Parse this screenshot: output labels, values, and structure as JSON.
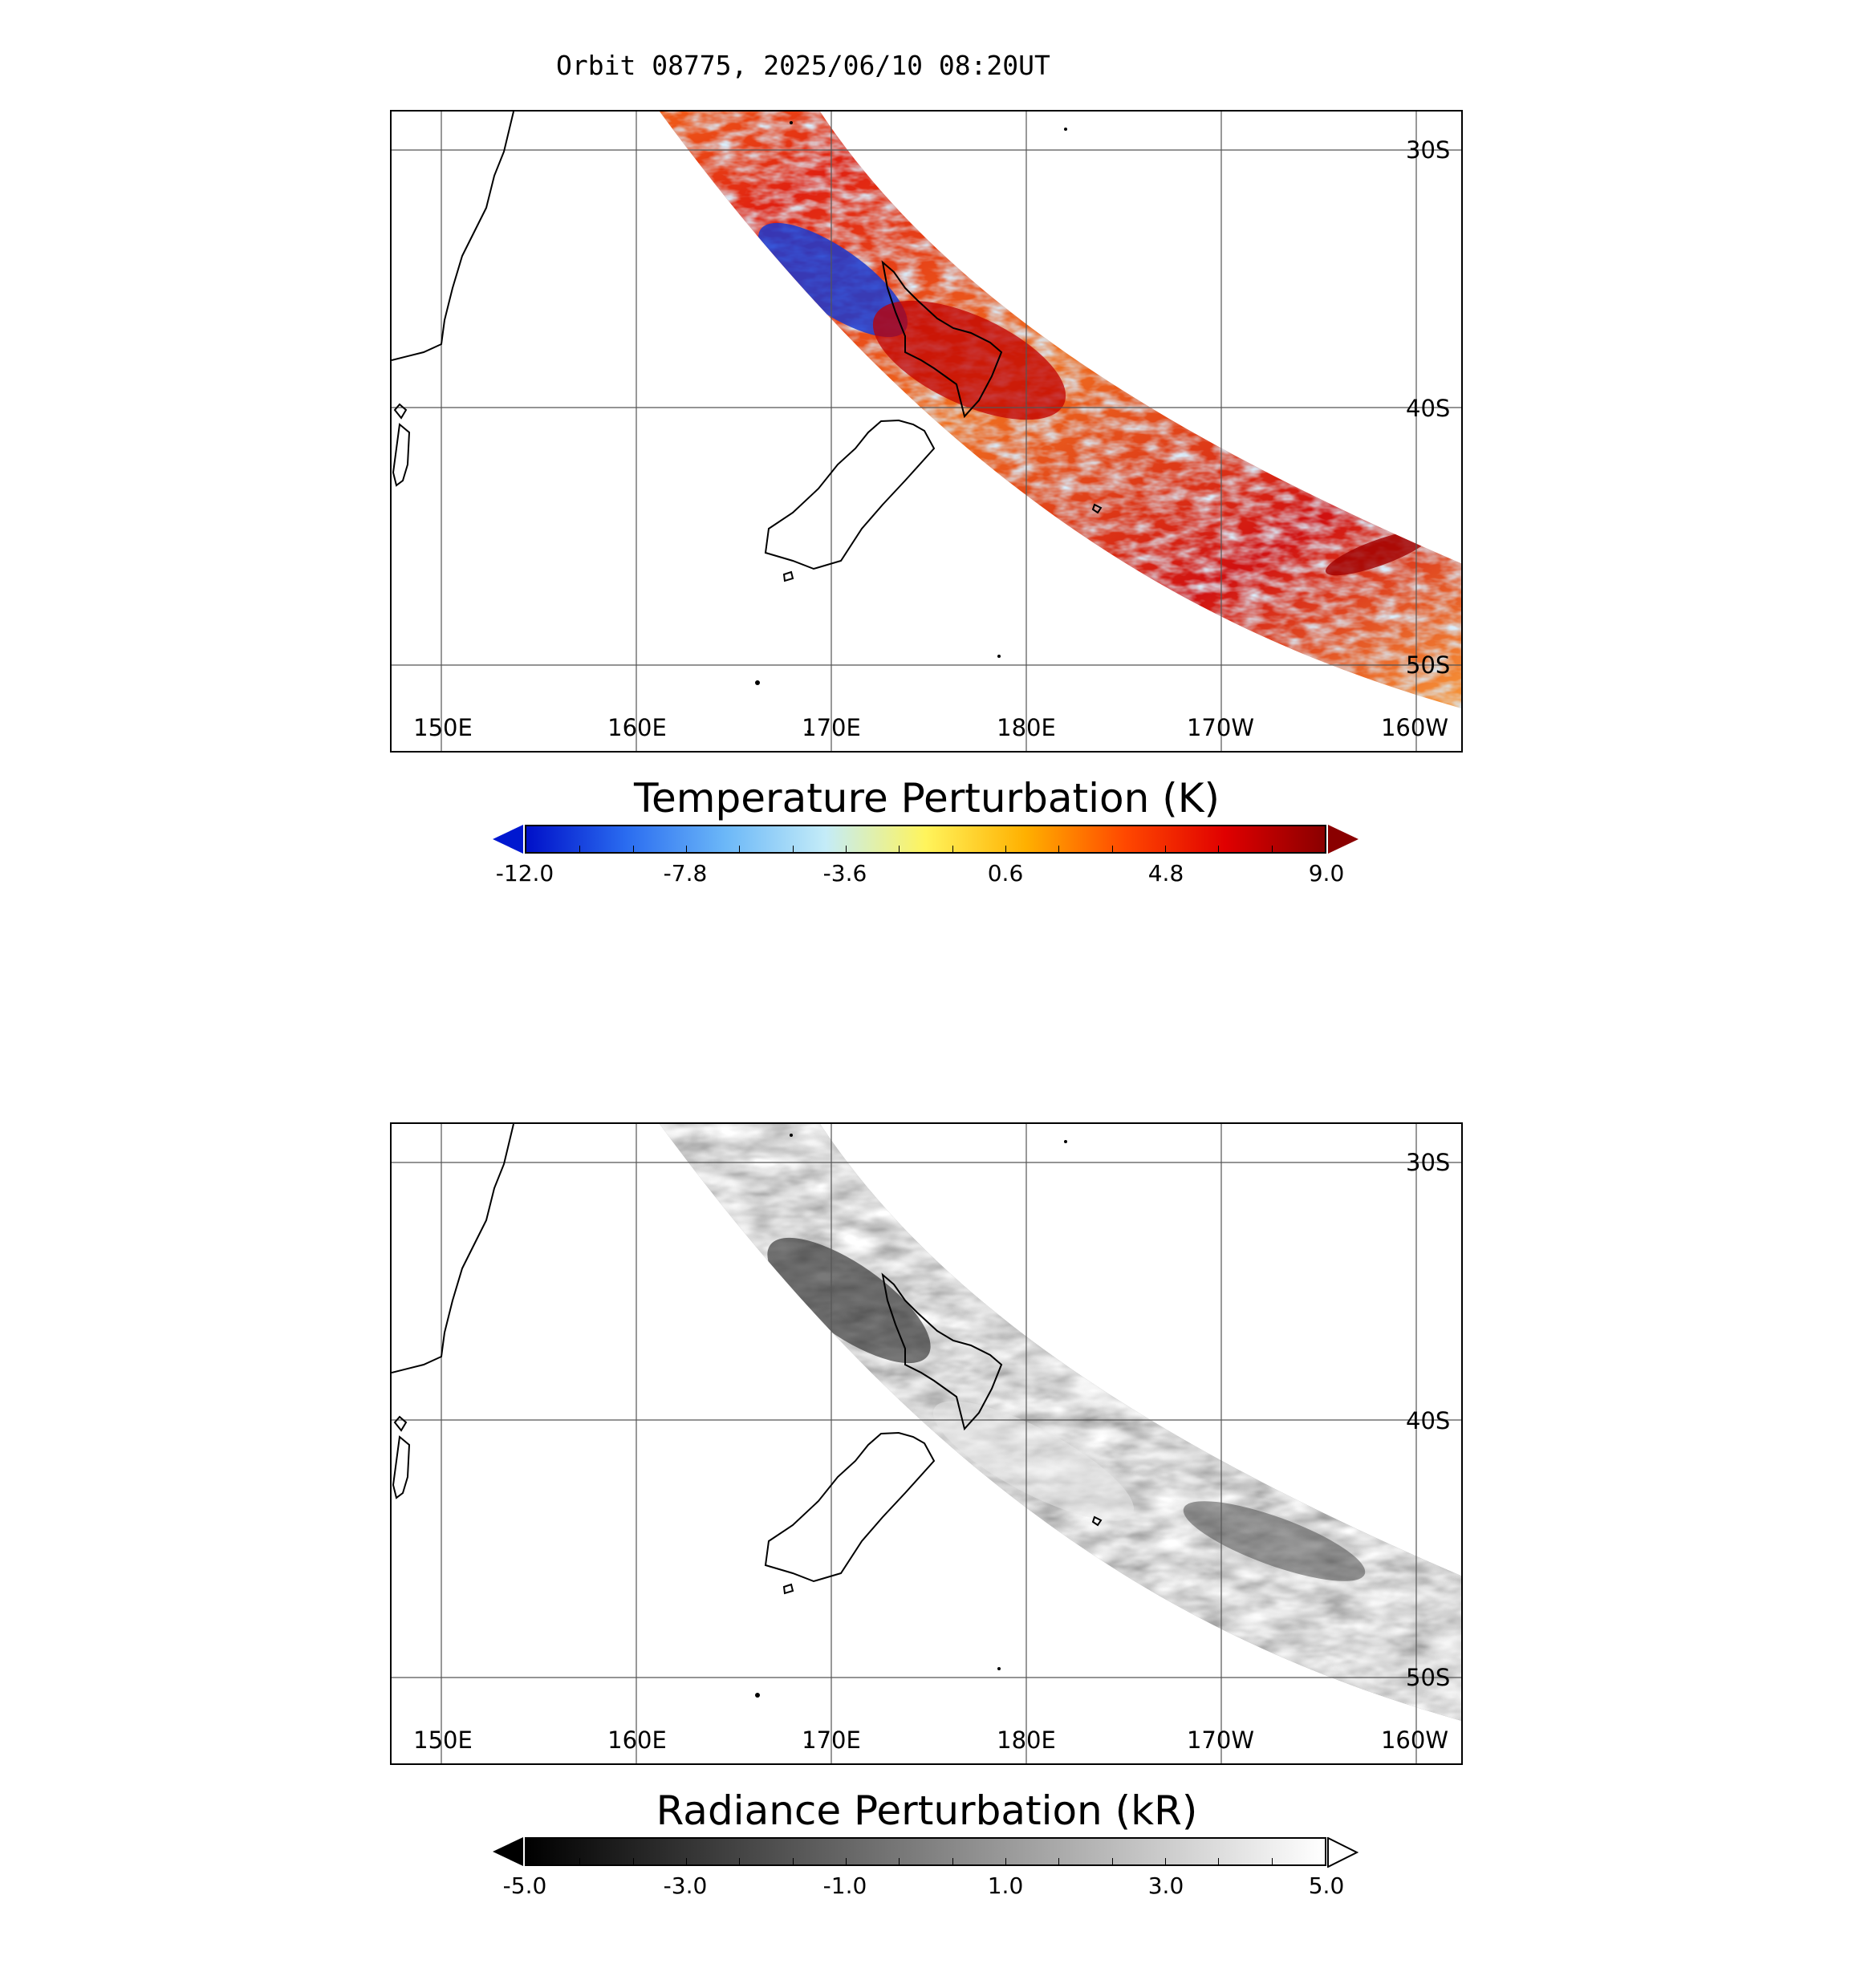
{
  "title": "Orbit 08775, 2025/06/10 08:20UT",
  "lon_labels": [
    "150E",
    "160E",
    "170E",
    "180E",
    "170W",
    "160W"
  ],
  "lat_labels": [
    "30S",
    "40S",
    "50S"
  ],
  "panels": [
    {
      "name": "temperature",
      "colorbar_title": "Temperature Perturbation (K)",
      "colorbar_ticks": [
        "-12.0",
        "-7.8",
        "-3.6",
        "0.6",
        "4.8",
        "9.0"
      ],
      "colormap": [
        "#0010c8",
        "#2a6cf0",
        "#6cb8f8",
        "#c4ecf8",
        "#fff45c",
        "#ffb000",
        "#ff4800",
        "#e00000",
        "#8a0000"
      ],
      "under_color": "#0018d0",
      "over_color": "#8a0000"
    },
    {
      "name": "radiance",
      "colorbar_title": "Radiance Perturbation (kR)",
      "colorbar_ticks": [
        "-5.0",
        "-3.0",
        "-1.0",
        "1.0",
        "3.0",
        "5.0"
      ],
      "colormap": [
        "#000000",
        "#ffffff"
      ],
      "under_color": "#000000",
      "over_color": "#ffffff"
    }
  ]
}
